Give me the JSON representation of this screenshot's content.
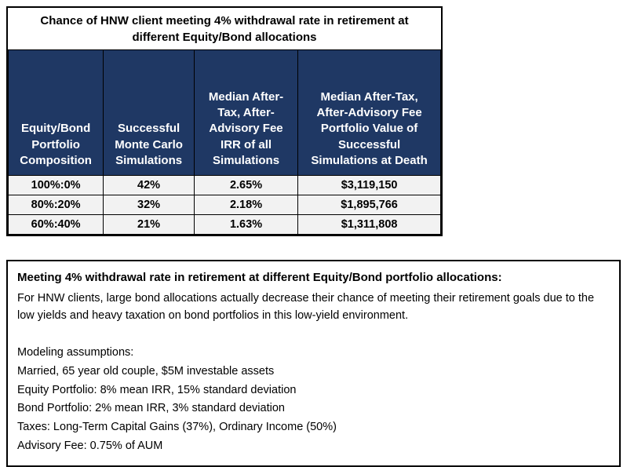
{
  "table_box": {
    "title": "Chance of HNW client meeting 4% withdrawal rate in retirement at different Equity/Bond allocations",
    "columns": [
      "Equity/Bond Portfolio Composition",
      "Successful Monte Carlo Simulations",
      "Median After-Tax, After-Advisory Fee IRR of all Simulations",
      "Median After-Tax, After-Advisory Fee Portfolio Value of Successful Simulations at Death"
    ],
    "rows": [
      [
        "100%:0%",
        "42%",
        "2.65%",
        "$3,119,150"
      ],
      [
        "80%:20%",
        "32%",
        "2.18%",
        "$1,895,766"
      ],
      [
        "60%:40%",
        "21%",
        "1.63%",
        "$1,311,808"
      ]
    ],
    "colors": {
      "header_bg": "#1F3864",
      "header_text": "#FFFFFF",
      "row_bg": "#F2F2F2",
      "border": "#000000"
    }
  },
  "chart_data": {
    "type": "table",
    "title": "Chance of HNW client meeting 4% withdrawal rate in retirement at different Equity/Bond allocations",
    "columns": [
      "Equity/Bond Portfolio Composition",
      "Successful Monte Carlo Simulations",
      "Median After-Tax, After-Advisory Fee IRR of all Simulations",
      "Median After-Tax, After-Advisory Fee Portfolio Value of Successful Simulations at Death"
    ],
    "rows": [
      [
        "100%:0%",
        "42%",
        "2.65%",
        "$3,119,150"
      ],
      [
        "80%:20%",
        "32%",
        "2.18%",
        "$1,895,766"
      ],
      [
        "60%:40%",
        "21%",
        "1.63%",
        "$1,311,808"
      ]
    ]
  },
  "notes_box": {
    "title": "Meeting 4% withdrawal rate in retirement at different Equity/Bond portfolio allocations:",
    "description": "For HNW clients, large bond allocations actually decrease their chance of meeting their retirement goals due to the low yields and heavy taxation on bond portfolios in this low-yield environment.",
    "assumptions_label": "Modeling assumptions:",
    "assumptions": [
      "Married, 65 year old couple, $5M investable assets",
      "Equity Portfolio: 8% mean IRR, 15% standard deviation",
      "Bond Portfolio: 2% mean IRR, 3% standard deviation",
      "Taxes: Long-Term Capital Gains (37%), Ordinary Income (50%)",
      "Advisory Fee: 0.75% of AUM"
    ]
  }
}
